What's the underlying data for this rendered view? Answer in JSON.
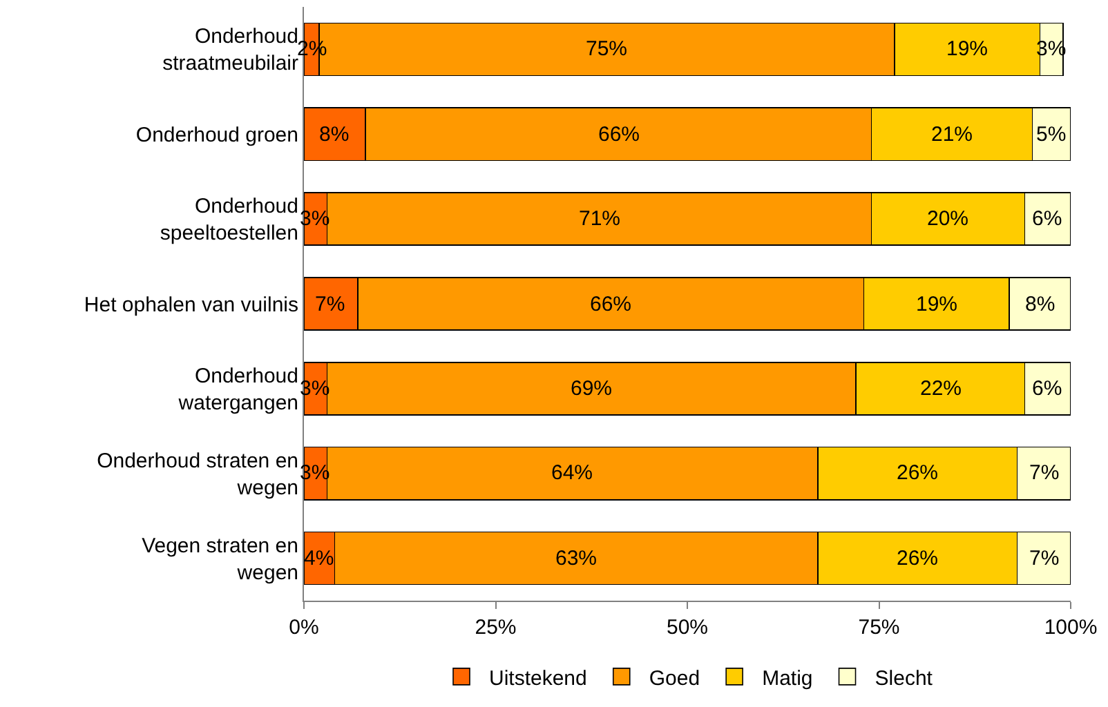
{
  "chart_data": {
    "type": "bar",
    "orientation": "horizontal",
    "stacked": true,
    "categories": [
      "Onderhoud\nstraatmeubilair",
      "Onderhoud groen",
      "Onderhoud\nspeeltoestellen",
      "Het ophalen van vuilnis",
      "Onderhoud\nwatergangen",
      "Onderhoud straten en\nwegen",
      "Vegen straten en\nwegen"
    ],
    "series": [
      {
        "name": "Uitstekend",
        "color": "#ff6600",
        "values": [
          2,
          8,
          3,
          7,
          3,
          3,
          4
        ],
        "value_labels": [
          "2%",
          "8%",
          "3%",
          "7%",
          "3%",
          "3%",
          "4%"
        ]
      },
      {
        "name": "Goed",
        "color": "#ff9900",
        "values": [
          75,
          66,
          71,
          66,
          69,
          64,
          63
        ],
        "value_labels": [
          "75%",
          "66%",
          "71%",
          "66%",
          "69%",
          "64%",
          "63%"
        ]
      },
      {
        "name": "Matig",
        "color": "#ffcc00",
        "values": [
          19,
          21,
          20,
          19,
          22,
          26,
          26
        ],
        "value_labels": [
          "19%",
          "21%",
          "20%",
          "19%",
          "22%",
          "26%",
          "26%"
        ]
      },
      {
        "name": "Slecht",
        "color": "#ffffcc",
        "values": [
          3,
          5,
          6,
          8,
          6,
          7,
          7
        ],
        "value_labels": [
          "3%",
          "5%",
          "6%",
          "8%",
          "6%",
          "7%",
          "7%"
        ]
      }
    ],
    "xlim": [
      0,
      100
    ],
    "xticks": [
      {
        "value": 0,
        "label": "0%"
      },
      {
        "value": 25,
        "label": "25%"
      },
      {
        "value": 50,
        "label": "50%"
      },
      {
        "value": 75,
        "label": "75%"
      },
      {
        "value": 100,
        "label": "100%"
      }
    ],
    "legend": "bottom"
  }
}
